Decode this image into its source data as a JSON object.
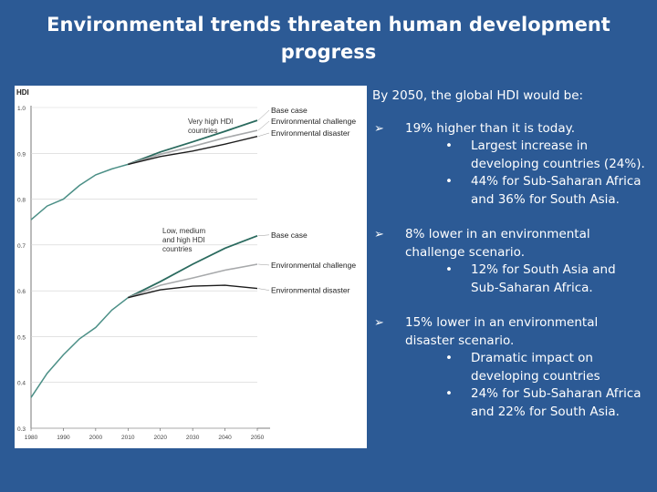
{
  "slide": {
    "title_line1": "Environmental trends threaten  human development",
    "title_line2": "progress"
  },
  "colors": {
    "background": "#2c5a95",
    "base": "#2a6a5e",
    "history": "#4b8f86",
    "challenge": "#a7a9ab",
    "disaster": "#1c1c1c"
  },
  "chart_data": {
    "type": "line",
    "ylabel": "HDI",
    "ylim": [
      0.3,
      1.0
    ],
    "xlim": [
      1980,
      2050
    ],
    "xticks": [
      "1980",
      "1990",
      "2000",
      "2010",
      "2020",
      "2030",
      "2040",
      "2050"
    ],
    "yticks": [
      "1.0",
      "0.9",
      "0.8",
      "0.7",
      "0.6",
      "0.5",
      "0.4",
      "0.3"
    ],
    "groups": [
      {
        "label_line1": "Very high HDI",
        "label_line2": "countries",
        "history": {
          "x": [
            1980,
            1985,
            1990,
            1995,
            2000,
            2005,
            2010
          ],
          "y": [
            0.755,
            0.785,
            0.8,
            0.83,
            0.853,
            0.866,
            0.876
          ]
        },
        "series": [
          {
            "name": "Base case",
            "x": [
              2010,
              2020,
              2030,
              2040,
              2050
            ],
            "y": [
              0.876,
              0.903,
              0.925,
              0.948,
              0.972
            ]
          },
          {
            "name": "Environmental challenge",
            "x": [
              2010,
              2020,
              2030,
              2040,
              2050
            ],
            "y": [
              0.876,
              0.898,
              0.915,
              0.934,
              0.95
            ]
          },
          {
            "name": "Environmental disaster",
            "x": [
              2010,
              2020,
              2030,
              2040,
              2050
            ],
            "y": [
              0.876,
              0.893,
              0.905,
              0.92,
              0.937
            ]
          }
        ]
      },
      {
        "label_line1": "Low, medium",
        "label_line2": "and high HDI",
        "label_line3": "countries",
        "history": {
          "x": [
            1980,
            1985,
            1990,
            1995,
            2000,
            2005,
            2010
          ],
          "y": [
            0.367,
            0.42,
            0.46,
            0.495,
            0.52,
            0.558,
            0.585
          ]
        },
        "series": [
          {
            "name": "Base case",
            "x": [
              2010,
              2020,
              2030,
              2040,
              2050
            ],
            "y": [
              0.585,
              0.62,
              0.658,
              0.693,
              0.72
            ]
          },
          {
            "name": "Environmental challenge",
            "x": [
              2010,
              2020,
              2030,
              2040,
              2050
            ],
            "y": [
              0.585,
              0.612,
              0.628,
              0.645,
              0.658
            ]
          },
          {
            "name": "Environmental disaster",
            "x": [
              2010,
              2020,
              2030,
              2040,
              2050
            ],
            "y": [
              0.585,
              0.602,
              0.61,
              0.612,
              0.605
            ]
          }
        ]
      }
    ]
  },
  "bullets": {
    "intro": "By 2050,  the  global HDI would  be:",
    "items": [
      {
        "text": "19% higher than it is today.",
        "subs": [
          "Largest increase in developing countries (24%).",
          "44%  for Sub-Saharan Africa and 36% for South Asia."
        ]
      },
      {
        "text": "8% lower in an environmental challenge scenario.",
        "subs": [
          "12% for South Asia and Sub-Saharan Africa."
        ]
      },
      {
        "text": "15% lower in an environmental disaster scenario.",
        "subs": [
          "Dramatic impact on developing countries",
          "24% for Sub-Saharan Africa and 22% for South Asia."
        ]
      }
    ]
  }
}
